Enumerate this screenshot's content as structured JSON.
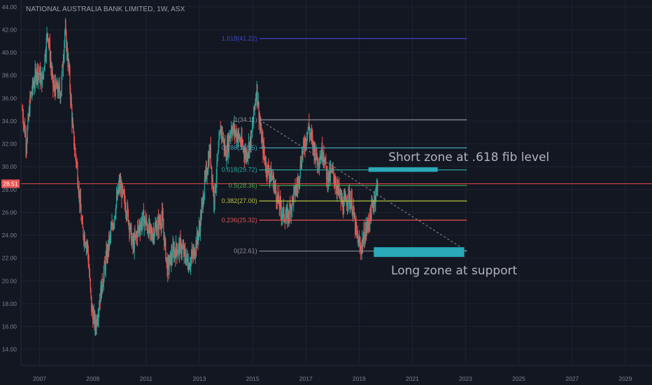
{
  "header": {
    "symbol_title": "NATIONAL AUSTRALIA BANK LIMITED, 1W, ASX"
  },
  "colors": {
    "background": "#131722",
    "grid": "#1f2330",
    "axis_text": "#7a8090",
    "candle_up": "#26a69a",
    "candle_down": "#ef5350",
    "price_line": "#e04848",
    "price_badge": "#e85555",
    "zone": "#2aa9b8",
    "trendline": "#8a8e99"
  },
  "chart_data": {
    "type": "candlestick",
    "title": "NATIONAL AUSTRALIA BANK LIMITED, 1W, ASX",
    "x_range": [
      2006.3,
      2030.0
    ],
    "ylim": [
      12.6,
      44.6
    ],
    "grid": true,
    "x_ticks": [
      "2007",
      "2009",
      "2011",
      "2013",
      "2015",
      "2017",
      "2019",
      "2021",
      "2023",
      "2025",
      "2027",
      "2029"
    ],
    "x_tick_values": [
      2007,
      2009,
      2011,
      2013,
      2015,
      2017,
      2019,
      2021,
      2023,
      2025,
      2027,
      2029
    ],
    "y_ticks": [
      "14.00",
      "16.00",
      "18.00",
      "20.00",
      "22.00",
      "24.00",
      "26.00",
      "28.00",
      "30.00",
      "32.00",
      "34.00",
      "36.00",
      "38.00",
      "40.00",
      "42.00",
      "44.00"
    ],
    "y_tick_values": [
      14,
      16,
      18,
      20,
      22,
      24,
      26,
      28,
      30,
      32,
      34,
      36,
      38,
      40,
      42,
      44
    ],
    "current_price": {
      "label": "28.51",
      "value": 28.51
    },
    "price_path": [
      [
        2006.35,
        35.0
      ],
      [
        2006.5,
        32.0
      ],
      [
        2006.65,
        36.0
      ],
      [
        2006.9,
        38.5
      ],
      [
        2007.1,
        37.5
      ],
      [
        2007.3,
        42.0
      ],
      [
        2007.5,
        37.0
      ],
      [
        2007.8,
        36.5
      ],
      [
        2007.95,
        42.0
      ],
      [
        2008.1,
        38.5
      ],
      [
        2008.25,
        33.0
      ],
      [
        2008.4,
        30.0
      ],
      [
        2008.6,
        24.5
      ],
      [
        2008.8,
        23.0
      ],
      [
        2008.95,
        17.5
      ],
      [
        2009.1,
        16.0
      ],
      [
        2009.3,
        19.0
      ],
      [
        2009.5,
        22.0
      ],
      [
        2009.75,
        25.0
      ],
      [
        2010.0,
        28.5
      ],
      [
        2010.3,
        26.0
      ],
      [
        2010.5,
        23.0
      ],
      [
        2010.7,
        24.5
      ],
      [
        2010.9,
        25.5
      ],
      [
        2011.2,
        24.0
      ],
      [
        2011.6,
        25.5
      ],
      [
        2011.8,
        21.0
      ],
      [
        2012.0,
        22.5
      ],
      [
        2012.3,
        23.0
      ],
      [
        2012.6,
        21.5
      ],
      [
        2012.8,
        22.5
      ],
      [
        2013.0,
        24.5
      ],
      [
        2013.2,
        28.5
      ],
      [
        2013.4,
        31.5
      ],
      [
        2013.55,
        27.0
      ],
      [
        2013.8,
        33.5
      ],
      [
        2014.0,
        31.0
      ],
      [
        2014.2,
        33.5
      ],
      [
        2014.5,
        32.5
      ],
      [
        2014.75,
        31.0
      ],
      [
        2014.95,
        32.5
      ],
      [
        2015.15,
        37.0
      ],
      [
        2015.3,
        33.0
      ],
      [
        2015.5,
        30.0
      ],
      [
        2015.75,
        29.0
      ],
      [
        2015.95,
        27.0
      ],
      [
        2016.1,
        26.0
      ],
      [
        2016.3,
        25.5
      ],
      [
        2016.55,
        27.5
      ],
      [
        2016.7,
        28.5
      ],
      [
        2016.85,
        31.0
      ],
      [
        2017.1,
        33.5
      ],
      [
        2017.25,
        32.0
      ],
      [
        2017.45,
        30.5
      ],
      [
        2017.65,
        31.5
      ],
      [
        2017.8,
        29.0
      ],
      [
        2018.0,
        29.5
      ],
      [
        2018.2,
        28.0
      ],
      [
        2018.4,
        26.5
      ],
      [
        2018.6,
        27.5
      ],
      [
        2018.75,
        26.5
      ],
      [
        2018.9,
        24.0
      ],
      [
        2019.05,
        22.8
      ],
      [
        2019.2,
        24.0
      ],
      [
        2019.4,
        25.5
      ],
      [
        2019.55,
        27.0
      ],
      [
        2019.7,
        28.51
      ]
    ],
    "fib_retracement": {
      "x_start": 2015.25,
      "x_end": 2023.05,
      "levels": [
        {
          "label": "1.618(41.22)",
          "value": 41.22,
          "color": "#3f47c7"
        },
        {
          "label": "1(34.11)",
          "value": 34.11,
          "color": "#8c8f99"
        },
        {
          "label": "0.786(31.65)",
          "value": 31.65,
          "color": "#4aa4b8"
        },
        {
          "label": "0.618(29.72)",
          "value": 29.72,
          "color": "#26a69a"
        },
        {
          "label": "0.5(28.36)",
          "value": 28.36,
          "color": "#4caf50"
        },
        {
          "label": "0.382(27.00)",
          "value": 27.0,
          "color": "#b5c43a"
        },
        {
          "label": "0.236(25.32)",
          "value": 25.32,
          "color": "#e05050"
        },
        {
          "label": "0(22.61)",
          "value": 22.61,
          "color": "#8c8f99"
        }
      ]
    },
    "trendline": {
      "from": [
        2015.25,
        34.11
      ],
      "to": [
        2023.05,
        22.61
      ]
    },
    "zones": [
      {
        "name": "short",
        "x_from": 2019.35,
        "x_to": 2021.95,
        "y_from": 29.55,
        "y_to": 29.95
      },
      {
        "name": "long",
        "x_from": 2019.55,
        "x_to": 2022.95,
        "y_from": 22.1,
        "y_to": 22.95
      }
    ],
    "annotations": [
      {
        "text": "Short zone at .618 fib level",
        "x": 2020.1,
        "y": 30.8
      },
      {
        "text": "Long zone at support",
        "x": 2020.2,
        "y": 20.9
      }
    ]
  }
}
